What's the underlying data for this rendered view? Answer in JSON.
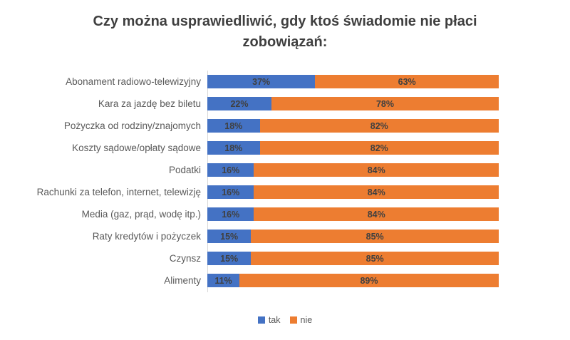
{
  "title": "Czy można usprawiedliwić, gdy ktoś świadomie nie płaci zobowiązań:",
  "chart_data": {
    "type": "bar",
    "orientation": "horizontal",
    "stacked": true,
    "title": "Czy można usprawiedliwić, gdy ktoś świadomie nie płaci zobowiązań:",
    "xlabel": "",
    "ylabel": "",
    "xlim": [
      0,
      100
    ],
    "value_format": "percent",
    "grid": false,
    "legend_position": "bottom",
    "categories": [
      "Abonament radiowo-telewizyjny",
      "Kara za jazdę bez biletu",
      "Pożyczka od rodziny/znajomych",
      "Koszty sądowe/opłaty sądowe",
      "Podatki",
      "Rachunki za telefon, internet, telewizję",
      "Media (gaz, prąd, wodę itp.)",
      "Raty kredytów i pożyczek",
      "Czynsz",
      "Alimenty"
    ],
    "series": [
      {
        "name": "tak",
        "color": "#4472C4",
        "values": [
          37,
          22,
          18,
          18,
          16,
          16,
          16,
          15,
          15,
          11
        ]
      },
      {
        "name": "nie",
        "color": "#ED7D31",
        "values": [
          63,
          78,
          82,
          82,
          84,
          84,
          84,
          85,
          85,
          89
        ]
      }
    ]
  },
  "colors": {
    "tak": "#4472C4",
    "nie": "#ED7D31",
    "title_text": "#3F3F3F",
    "category_text": "#595959",
    "value_label_text": "#404040",
    "legend_text": "#595959",
    "axis_line": "#D9D9D9",
    "background": "#FFFFFF"
  }
}
